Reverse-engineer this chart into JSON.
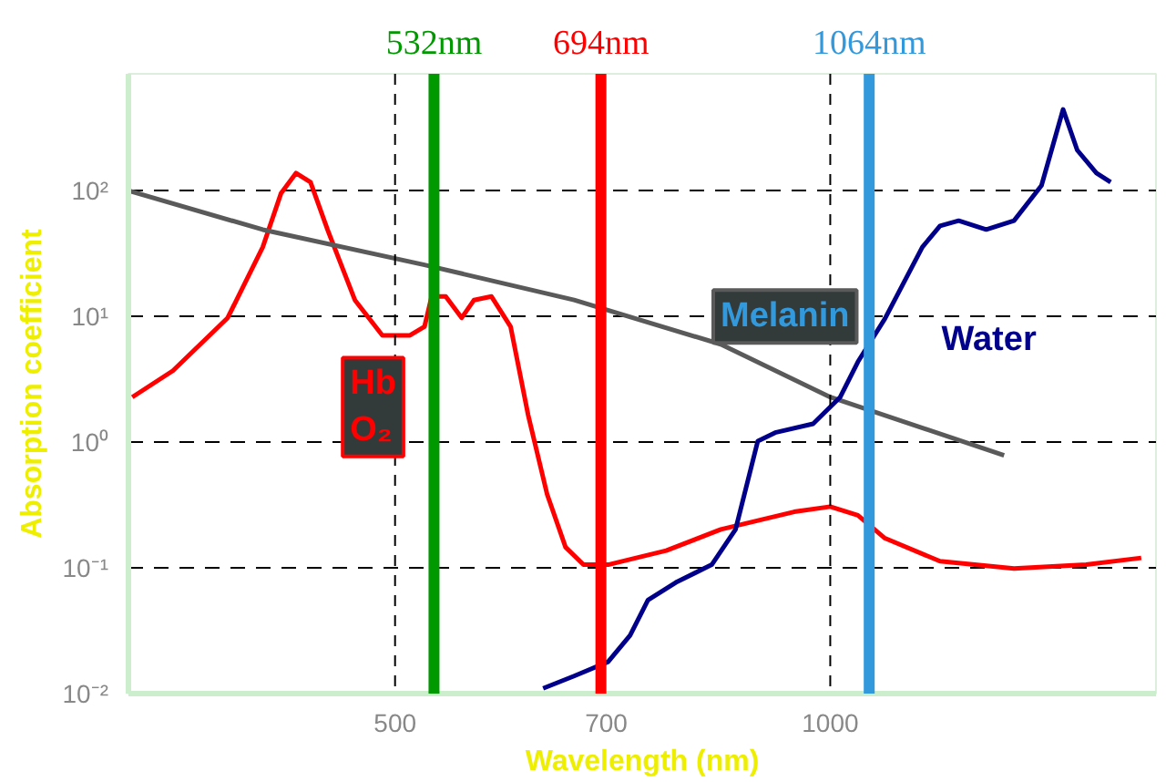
{
  "chart_data": {
    "type": "line",
    "xlabel": "Wavelength (nm)",
    "ylabel": "Absorption coefficient",
    "log": "xy",
    "xlim": [
      327,
      1680
    ],
    "ylim": [
      0.01,
      850
    ],
    "xticks": [
      500,
      700,
      1000
    ],
    "yticks": [
      {
        "value": 100,
        "label": "10²"
      },
      {
        "value": 10,
        "label": "10¹"
      },
      {
        "value": 1,
        "label": "10⁰"
      },
      {
        "value": 0.1,
        "label": "10⁻¹"
      },
      {
        "value": 0.01,
        "label": "10⁻²"
      }
    ],
    "grid": "y",
    "series": [
      {
        "name": "Hb O₂",
        "color": "#ff0000",
        "x": [
          329,
          351,
          383,
          405,
          417,
          427,
          437,
          449,
          469,
          490,
          512,
          524,
          530,
          542,
          556,
          567,
          583,
          601,
          618,
          637,
          656,
          675,
          702,
          770,
          840,
          944,
          1000,
          1045,
          1091,
          1191,
          1340,
          1503,
          1641
        ],
        "values": [
          2.28,
          3.7,
          9.75,
          35.6,
          95.6,
          138,
          117,
          49,
          13.5,
          7.07,
          7.07,
          8.3,
          14.4,
          14.4,
          9.75,
          13.5,
          14.4,
          8.3,
          1.65,
          0.385,
          0.146,
          0.106,
          0.106,
          0.137,
          0.202,
          0.279,
          0.307,
          0.262,
          0.172,
          0.113,
          0.099,
          0.106,
          0.12
        ]
      },
      {
        "name": "Melanin",
        "color": "#5a5a5a",
        "x": [
          327,
          405,
          524,
          665,
          840,
          1000,
          1319
        ],
        "values": [
          100,
          49,
          25.7,
          13.5,
          6.0,
          2.28,
          0.785
        ]
      },
      {
        "name": "Water",
        "color": "#00008b",
        "x": [
          633,
          665,
          702,
          727,
          748,
          782,
          828,
          860,
          891,
          916,
          973,
          1016,
          1045,
          1091,
          1158,
          1191,
          1227,
          1282,
          1340,
          1400,
          1449,
          1482,
          1528,
          1563
        ],
        "values": [
          0.011,
          0.0138,
          0.0179,
          0.029,
          0.0555,
          0.0766,
          0.106,
          0.202,
          1.02,
          1.19,
          1.4,
          2.28,
          4.35,
          9.6,
          35.6,
          52.4,
          57.7,
          49.1,
          57.7,
          110,
          443,
          210,
          138,
          117
        ]
      }
    ],
    "ref_lines": [
      {
        "axis": "x",
        "value": 500,
        "label": null,
        "color": "#000000",
        "line_style": "dashed"
      },
      {
        "axis": "x",
        "value": 1000,
        "label": null,
        "color": "#000000",
        "line_style": "dashed"
      },
      {
        "axis": "x",
        "value": 532,
        "label": "532nm",
        "color": "#009900",
        "line_style": "solid"
      },
      {
        "axis": "x",
        "value": 694,
        "label": "694nm",
        "color": "#ff0000",
        "line_style": "solid"
      },
      {
        "axis": "x",
        "value": 1064,
        "label": "1064nm",
        "color": "#3399dd",
        "line_style": "solid"
      }
    ]
  }
}
